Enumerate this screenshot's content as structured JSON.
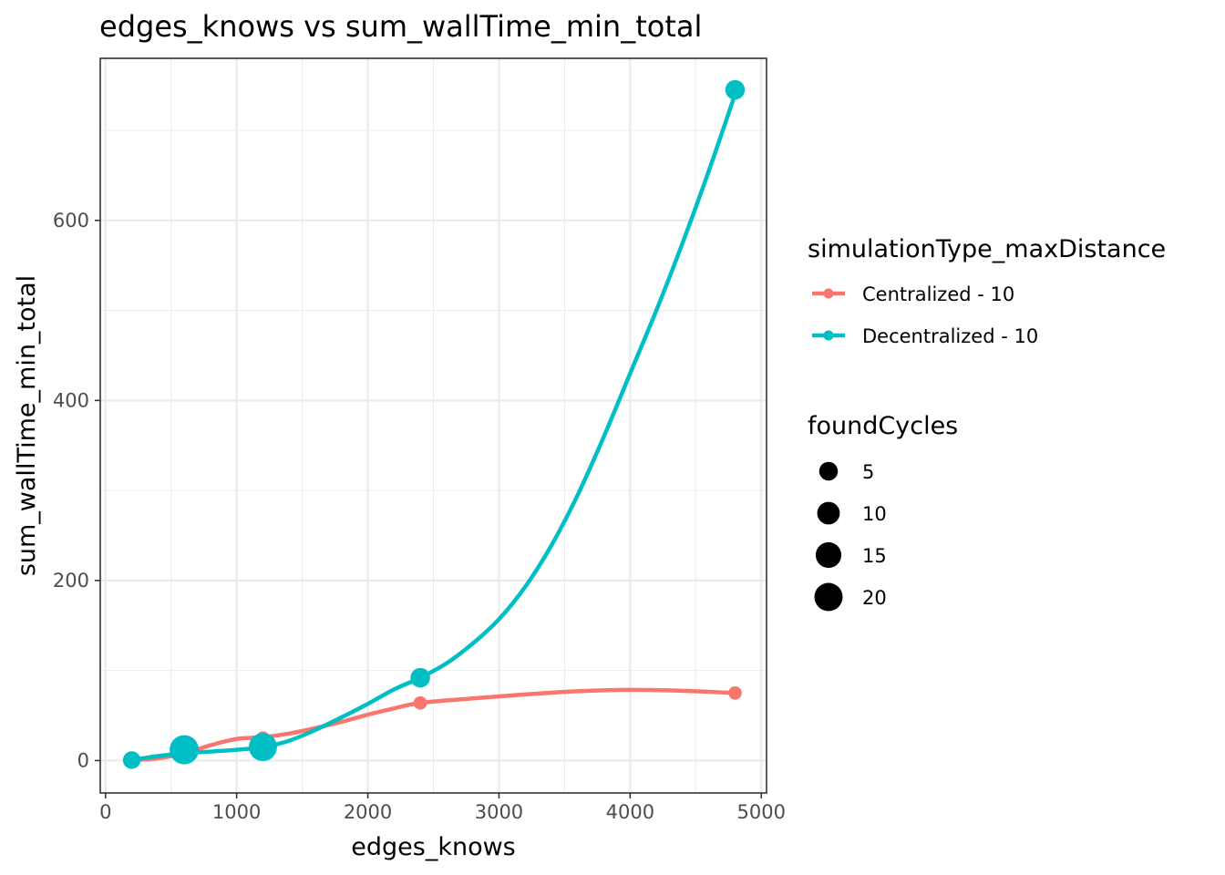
{
  "chart_data": {
    "type": "scatter",
    "title": "edges_knows  vs  sum_wallTime_min_total",
    "xlabel": "edges_knows",
    "ylabel": "sum_wallTime_min_total",
    "xlim": [
      -40,
      5040
    ],
    "ylim": [
      -36,
      780
    ],
    "x_ticks": [
      0,
      1000,
      2000,
      3000,
      4000,
      5000
    ],
    "y_ticks": [
      0,
      200,
      400,
      600
    ],
    "grid": true,
    "legend_position": "right",
    "color_legend": {
      "title": "simulationType_maxDistance"
    },
    "size_legend": {
      "title": "foundCycles",
      "entries": [
        {
          "label": "5",
          "value": 5
        },
        {
          "label": "10",
          "value": 10
        },
        {
          "label": "15",
          "value": 15
        },
        {
          "label": "20",
          "value": 20
        }
      ]
    },
    "series": [
      {
        "name": "Centralized - 10",
        "color": "#F8766D",
        "points": [
          {
            "x": 200,
            "y": 0.5,
            "size": 1
          },
          {
            "x": 600,
            "y": 8,
            "size": 1
          },
          {
            "x": 1200,
            "y": 25,
            "size": 1
          },
          {
            "x": 2400,
            "y": 64,
            "size": 1
          },
          {
            "x": 4800,
            "y": 75,
            "size": 1
          }
        ],
        "smooth": [
          [
            200,
            0.5
          ],
          [
            400,
            2.5
          ],
          [
            600,
            8
          ],
          [
            800,
            17
          ],
          [
            1000,
            24
          ],
          [
            1200,
            26
          ],
          [
            1400,
            30
          ],
          [
            1600,
            36
          ],
          [
            1800,
            43
          ],
          [
            2000,
            51
          ],
          [
            2200,
            58
          ],
          [
            2400,
            64
          ],
          [
            2800,
            69
          ],
          [
            3200,
            73.5
          ],
          [
            3600,
            77
          ],
          [
            4000,
            78.5
          ],
          [
            4400,
            77.5
          ],
          [
            4800,
            75
          ]
        ]
      },
      {
        "name": "Decentralized - 10",
        "color": "#00BFC4",
        "points": [
          {
            "x": 200,
            "y": 0.5,
            "size": 4
          },
          {
            "x": 600,
            "y": 12,
            "size": 22
          },
          {
            "x": 1200,
            "y": 15,
            "size": 20
          },
          {
            "x": 2400,
            "y": 92,
            "size": 6
          },
          {
            "x": 4800,
            "y": 745,
            "size": 6
          }
        ],
        "smooth": [
          [
            200,
            0.5
          ],
          [
            400,
            5
          ],
          [
            600,
            8
          ],
          [
            800,
            10
          ],
          [
            1000,
            12
          ],
          [
            1200,
            15
          ],
          [
            1400,
            22
          ],
          [
            1600,
            34
          ],
          [
            1800,
            48
          ],
          [
            2000,
            63
          ],
          [
            2200,
            79
          ],
          [
            2400,
            92
          ],
          [
            2600,
            108
          ],
          [
            2800,
            130
          ],
          [
            3000,
            157
          ],
          [
            3200,
            193
          ],
          [
            3400,
            239
          ],
          [
            3600,
            295
          ],
          [
            3800,
            360
          ],
          [
            4000,
            430
          ],
          [
            4200,
            500
          ],
          [
            4400,
            575
          ],
          [
            4600,
            655
          ],
          [
            4800,
            740
          ]
        ]
      }
    ]
  }
}
